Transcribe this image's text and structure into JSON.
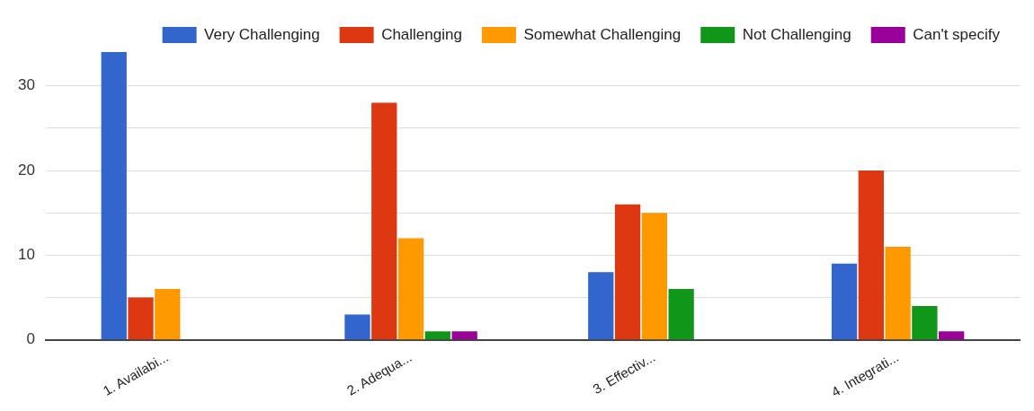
{
  "chart_data": {
    "type": "bar",
    "categories": [
      "1. Availabi...",
      "2. Adequa...",
      "3. Effectiv...",
      "4. Integrati..."
    ],
    "series": [
      {
        "name": "Very Challenging",
        "color": "#3366cc",
        "values": [
          34,
          3,
          8,
          9
        ]
      },
      {
        "name": "Challenging",
        "color": "#dc3912",
        "values": [
          5,
          28,
          16,
          20
        ]
      },
      {
        "name": "Somewhat Challenging",
        "color": "#ff9900",
        "values": [
          6,
          12,
          15,
          11
        ]
      },
      {
        "name": "Not Challenging",
        "color": "#109618",
        "values": [
          0,
          1,
          6,
          4
        ]
      },
      {
        "name": "Can't specify",
        "color": "#990099",
        "values": [
          0,
          1,
          0,
          1
        ]
      }
    ],
    "ylim": [
      0,
      34
    ],
    "yticks": [
      0,
      {
        "value": 5,
        "label": null
      },
      10,
      {
        "value": 15,
        "label": null
      },
      20,
      {
        "value": 25,
        "label": null
      },
      30
    ],
    "grid": "y",
    "legend": "top"
  }
}
